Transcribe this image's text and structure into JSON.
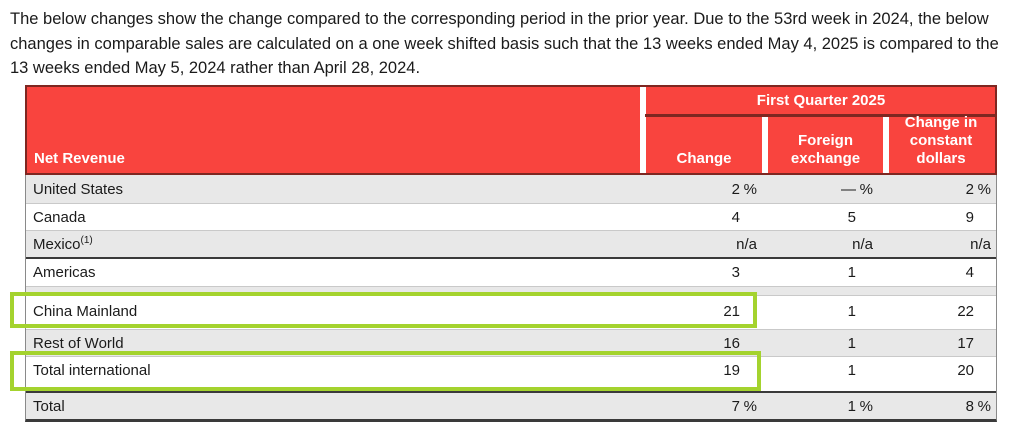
{
  "intro": {
    "text": "The below changes show the change compared to the corresponding period in the prior year. Due to the 53rd week in 2024, the below changes in comparable sales are calculated on a one week shifted basis such that the 13 weeks ended May 4, 2025 is compared to the 13 weeks ended May 5, 2024 rather than April 28, 2024."
  },
  "table": {
    "row_header": "Net Revenue",
    "group_header": "First Quarter 2025",
    "columns": [
      "Change",
      "Foreign exchange",
      "Change in constant dollars"
    ],
    "rows": [
      {
        "label": "United States",
        "values": [
          "2 %",
          "— %",
          "2 %"
        ]
      },
      {
        "label": "Canada",
        "values": [
          "4",
          "5",
          "9"
        ]
      },
      {
        "label": "Mexico",
        "footnote": "(1)",
        "values": [
          "n/a",
          "n/a",
          "n/a"
        ]
      },
      {
        "label": "Americas",
        "values": [
          "3",
          "1",
          "4"
        ]
      },
      {
        "label": "China Mainland",
        "values": [
          "21",
          "1",
          "22"
        ],
        "highlighted": true
      },
      {
        "label": "Rest of World",
        "values": [
          "16",
          "1",
          "17"
        ]
      },
      {
        "label": "Total international",
        "values": [
          "19",
          "1",
          "20"
        ],
        "highlighted": true
      },
      {
        "label": "Total",
        "values": [
          "7 %",
          "1 %",
          "8 %"
        ]
      }
    ],
    "colors": {
      "header_bg": "#F9443E",
      "header_border": "#7E2721",
      "highlight_green": "#A4D32E",
      "stripe_gray": "#E8E8E8"
    }
  }
}
